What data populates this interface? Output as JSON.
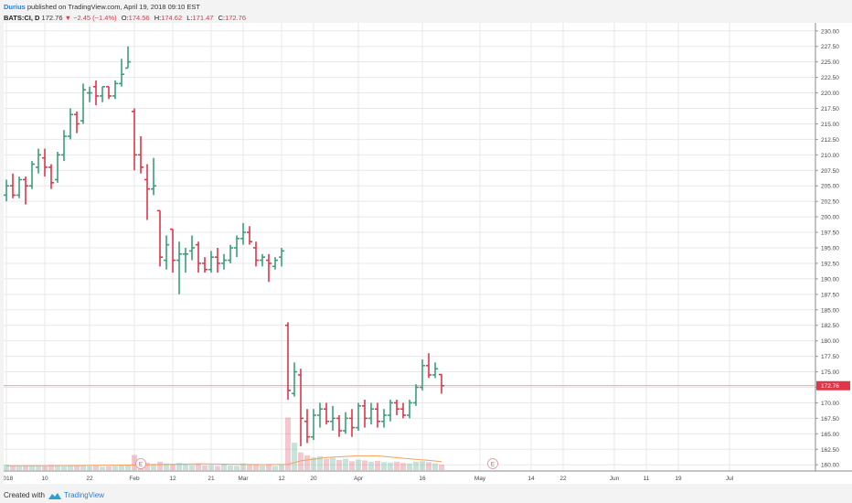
{
  "header": {
    "author": "Durius",
    "published": " published on TradingView.com, April 19, 2018 09:10 EST",
    "ticker": "BATS:CI, D",
    "last": "172.76",
    "change": "▼ −2.45 (−1.4%)",
    "open_label": "O:",
    "open": "174.56",
    "high_label": "H:",
    "high": "174.62",
    "low_label": "L:",
    "low": "171.47",
    "close_label": "C:",
    "close": "172.76"
  },
  "footer": {
    "created_with": "Created with",
    "brand": "TradingView"
  },
  "colors": {
    "up": "#3a9e7a",
    "down": "#e0364a",
    "grid": "#e8e8e8",
    "ma": "#f2a15a",
    "price_line": "#f08080"
  },
  "chart_data": {
    "type": "bar",
    "title": "",
    "price_axis": {
      "min": 159,
      "max": 231,
      "ticks": [
        "160.00",
        "162.50",
        "165.00",
        "167.50",
        "170.00",
        "172.50",
        "175.00",
        "177.50",
        "180.00",
        "182.50",
        "185.00",
        "187.50",
        "190.00",
        "192.50",
        "195.00",
        "197.50",
        "200.00",
        "202.50",
        "205.00",
        "207.50",
        "210.00",
        "212.50",
        "215.00",
        "217.50",
        "220.00",
        "222.50",
        "225.00",
        "227.50",
        "230.00"
      ]
    },
    "last_price": {
      "value": 172.76,
      "label": "172.76"
    },
    "x_labels": [
      {
        "label": "2018",
        "bar": 0
      },
      {
        "label": "10",
        "bar": 6
      },
      {
        "label": "22",
        "bar": 13
      },
      {
        "label": "Feb",
        "bar": 20
      },
      {
        "label": "12",
        "bar": 26
      },
      {
        "label": "21",
        "bar": 32
      },
      {
        "label": "Mar",
        "bar": 37
      },
      {
        "label": "12",
        "bar": 43
      },
      {
        "label": "20",
        "bar": 48
      },
      {
        "label": "Apr",
        "bar": 55
      },
      {
        "label": "16",
        "bar": 65
      },
      {
        "label": "May",
        "bar": 74
      },
      {
        "label": "14",
        "bar": 82
      },
      {
        "label": "22",
        "bar": 87
      },
      {
        "label": "Jun",
        "bar": 95
      },
      {
        "label": "11",
        "bar": 100
      },
      {
        "label": "19",
        "bar": 105
      },
      {
        "label": "Jul",
        "bar": 113
      }
    ],
    "earnings_markers": [
      {
        "bar": 21,
        "label": "E"
      },
      {
        "bar": 76,
        "label": "E"
      }
    ],
    "candles": [
      {
        "i": 0,
        "o": 203.5,
        "h": 206.0,
        "l": 202.5,
        "c": 205.0
      },
      {
        "i": 1,
        "o": 205.0,
        "h": 207.0,
        "l": 203.0,
        "c": 203.5
      },
      {
        "i": 2,
        "o": 203.5,
        "h": 206.5,
        "l": 203.0,
        "c": 206.0
      },
      {
        "i": 3,
        "o": 206.0,
        "h": 206.5,
        "l": 202.0,
        "c": 205.0
      },
      {
        "i": 4,
        "o": 205.0,
        "h": 209.0,
        "l": 204.5,
        "c": 208.5
      },
      {
        "i": 5,
        "o": 208.0,
        "h": 211.0,
        "l": 207.0,
        "c": 210.0
      },
      {
        "i": 6,
        "o": 209.5,
        "h": 211.0,
        "l": 206.5,
        "c": 208.0
      },
      {
        "i": 7,
        "o": 208.0,
        "h": 208.5,
        "l": 204.5,
        "c": 205.5
      },
      {
        "i": 8,
        "o": 206.0,
        "h": 210.5,
        "l": 205.5,
        "c": 210.0
      },
      {
        "i": 9,
        "o": 210.0,
        "h": 214.0,
        "l": 209.0,
        "c": 213.0
      },
      {
        "i": 10,
        "o": 213.0,
        "h": 217.5,
        "l": 212.5,
        "c": 216.5
      },
      {
        "i": 11,
        "o": 216.5,
        "h": 217.0,
        "l": 213.5,
        "c": 215.0
      },
      {
        "i": 12,
        "o": 215.5,
        "h": 221.5,
        "l": 215.0,
        "c": 220.5
      },
      {
        "i": 13,
        "o": 220.0,
        "h": 221.0,
        "l": 218.5,
        "c": 220.0
      },
      {
        "i": 14,
        "o": 221.0,
        "h": 222.0,
        "l": 218.0,
        "c": 219.5
      },
      {
        "i": 15,
        "o": 219.5,
        "h": 221.0,
        "l": 218.5,
        "c": 221.0
      },
      {
        "i": 16,
        "o": 221.0,
        "h": 221.0,
        "l": 219.0,
        "c": 219.5
      },
      {
        "i": 17,
        "o": 219.5,
        "h": 222.0,
        "l": 219.0,
        "c": 221.5
      },
      {
        "i": 18,
        "o": 221.5,
        "h": 225.5,
        "l": 221.0,
        "c": 223.0
      },
      {
        "i": 19,
        "o": 224.0,
        "h": 227.5,
        "l": 224.0,
        "c": 225.0
      },
      {
        "i": 20,
        "o": 217.0,
        "h": 217.5,
        "l": 207.5,
        "c": 210.0
      },
      {
        "i": 21,
        "o": 210.0,
        "h": 213.0,
        "l": 207.0,
        "c": 208.0
      },
      {
        "i": 22,
        "o": 206.0,
        "h": 208.5,
        "l": 199.5,
        "c": 204.5
      },
      {
        "i": 23,
        "o": 204.5,
        "h": 209.5,
        "l": 203.5,
        "c": 205.0
      },
      {
        "i": 24,
        "o": 201.0,
        "h": 201.0,
        "l": 192.0,
        "c": 193.5
      },
      {
        "i": 25,
        "o": 193.0,
        "h": 197.0,
        "l": 191.5,
        "c": 195.5
      },
      {
        "i": 26,
        "o": 198.0,
        "h": 198.0,
        "l": 191.0,
        "c": 193.0
      },
      {
        "i": 27,
        "o": 193.0,
        "h": 196.0,
        "l": 187.5,
        "c": 194.0
      },
      {
        "i": 28,
        "o": 194.0,
        "h": 195.0,
        "l": 191.0,
        "c": 194.0
      },
      {
        "i": 29,
        "o": 194.5,
        "h": 197.0,
        "l": 193.0,
        "c": 195.0
      },
      {
        "i": 30,
        "o": 195.5,
        "h": 196.0,
        "l": 191.0,
        "c": 192.5
      },
      {
        "i": 31,
        "o": 192.5,
        "h": 193.5,
        "l": 191.0,
        "c": 191.5
      },
      {
        "i": 32,
        "o": 191.5,
        "h": 194.5,
        "l": 191.0,
        "c": 193.5
      },
      {
        "i": 33,
        "o": 193.5,
        "h": 195.0,
        "l": 191.0,
        "c": 192.5
      },
      {
        "i": 34,
        "o": 192.5,
        "h": 194.0,
        "l": 191.5,
        "c": 193.0
      },
      {
        "i": 35,
        "o": 193.0,
        "h": 195.5,
        "l": 192.5,
        "c": 195.0
      },
      {
        "i": 36,
        "o": 195.0,
        "h": 197.0,
        "l": 193.5,
        "c": 196.5
      },
      {
        "i": 37,
        "o": 196.5,
        "h": 199.0,
        "l": 195.5,
        "c": 197.5
      },
      {
        "i": 38,
        "o": 197.5,
        "h": 198.5,
        "l": 195.5,
        "c": 196.0
      },
      {
        "i": 39,
        "o": 195.0,
        "h": 196.0,
        "l": 192.0,
        "c": 193.0
      },
      {
        "i": 40,
        "o": 193.0,
        "h": 194.0,
        "l": 192.0,
        "c": 193.5
      },
      {
        "i": 41,
        "o": 193.0,
        "h": 194.0,
        "l": 189.5,
        "c": 192.5
      },
      {
        "i": 42,
        "o": 192.0,
        "h": 193.5,
        "l": 191.5,
        "c": 193.0
      },
      {
        "i": 43,
        "o": 193.5,
        "h": 195.0,
        "l": 192.0,
        "c": 194.5
      },
      {
        "i": 44,
        "o": 182.5,
        "h": 183.0,
        "l": 170.5,
        "c": 172.0
      },
      {
        "i": 45,
        "o": 171.5,
        "h": 176.5,
        "l": 171.0,
        "c": 175.0
      },
      {
        "i": 46,
        "o": 174.5,
        "h": 175.5,
        "l": 163.0,
        "c": 167.5
      },
      {
        "i": 47,
        "o": 167.0,
        "h": 169.0,
        "l": 163.5,
        "c": 164.5
      },
      {
        "i": 48,
        "o": 164.5,
        "h": 169.0,
        "l": 164.0,
        "c": 168.0
      },
      {
        "i": 49,
        "o": 168.0,
        "h": 170.0,
        "l": 166.0,
        "c": 169.0
      },
      {
        "i": 50,
        "o": 169.0,
        "h": 170.0,
        "l": 166.5,
        "c": 167.0
      },
      {
        "i": 51,
        "o": 167.0,
        "h": 169.5,
        "l": 165.5,
        "c": 167.5
      },
      {
        "i": 52,
        "o": 167.5,
        "h": 168.0,
        "l": 164.5,
        "c": 165.5
      },
      {
        "i": 53,
        "o": 165.5,
        "h": 168.5,
        "l": 165.0,
        "c": 167.5
      },
      {
        "i": 54,
        "o": 167.5,
        "h": 169.0,
        "l": 164.5,
        "c": 166.0
      },
      {
        "i": 55,
        "o": 166.0,
        "h": 170.0,
        "l": 165.5,
        "c": 169.5
      },
      {
        "i": 56,
        "o": 169.5,
        "h": 170.5,
        "l": 166.0,
        "c": 167.5
      },
      {
        "i": 57,
        "o": 167.5,
        "h": 170.0,
        "l": 166.5,
        "c": 169.0
      },
      {
        "i": 58,
        "o": 169.0,
        "h": 170.0,
        "l": 166.0,
        "c": 167.0
      },
      {
        "i": 59,
        "o": 167.0,
        "h": 169.0,
        "l": 166.0,
        "c": 168.0
      },
      {
        "i": 60,
        "o": 168.0,
        "h": 170.5,
        "l": 167.0,
        "c": 170.0
      },
      {
        "i": 61,
        "o": 170.0,
        "h": 170.5,
        "l": 168.0,
        "c": 169.0
      },
      {
        "i": 62,
        "o": 169.0,
        "h": 170.0,
        "l": 167.5,
        "c": 168.0
      },
      {
        "i": 63,
        "o": 168.0,
        "h": 170.5,
        "l": 167.5,
        "c": 170.0
      },
      {
        "i": 64,
        "o": 170.0,
        "h": 173.0,
        "l": 169.5,
        "c": 172.5
      },
      {
        "i": 65,
        "o": 172.5,
        "h": 177.0,
        "l": 172.0,
        "c": 176.0
      },
      {
        "i": 66,
        "o": 176.0,
        "h": 178.0,
        "l": 174.0,
        "c": 174.5
      },
      {
        "i": 67,
        "o": 174.5,
        "h": 176.5,
        "l": 174.0,
        "c": 175.5
      },
      {
        "i": 68,
        "o": 174.56,
        "h": 174.62,
        "l": 171.47,
        "c": 172.76
      }
    ],
    "volume": [
      {
        "i": 0,
        "v": 1.3
      },
      {
        "i": 1,
        "v": 1.0
      },
      {
        "i": 2,
        "v": 0.9
      },
      {
        "i": 3,
        "v": 1.0
      },
      {
        "i": 4,
        "v": 1.1
      },
      {
        "i": 5,
        "v": 1.0
      },
      {
        "i": 6,
        "v": 0.9
      },
      {
        "i": 7,
        "v": 1.2
      },
      {
        "i": 8,
        "v": 1.0
      },
      {
        "i": 9,
        "v": 0.9
      },
      {
        "i": 10,
        "v": 1.1
      },
      {
        "i": 11,
        "v": 1.0
      },
      {
        "i": 12,
        "v": 1.2
      },
      {
        "i": 13,
        "v": 0.9
      },
      {
        "i": 14,
        "v": 1.0
      },
      {
        "i": 15,
        "v": 0.8
      },
      {
        "i": 16,
        "v": 0.9
      },
      {
        "i": 17,
        "v": 1.0
      },
      {
        "i": 18,
        "v": 1.1
      },
      {
        "i": 19,
        "v": 1.3
      },
      {
        "i": 20,
        "v": 3.6
      },
      {
        "i": 21,
        "v": 2.2
      },
      {
        "i": 22,
        "v": 1.8
      },
      {
        "i": 23,
        "v": 1.5
      },
      {
        "i": 24,
        "v": 2.0
      },
      {
        "i": 25,
        "v": 1.6
      },
      {
        "i": 26,
        "v": 1.4
      },
      {
        "i": 27,
        "v": 1.7
      },
      {
        "i": 28,
        "v": 1.3
      },
      {
        "i": 29,
        "v": 1.2
      },
      {
        "i": 30,
        "v": 1.4
      },
      {
        "i": 31,
        "v": 1.1
      },
      {
        "i": 32,
        "v": 1.2
      },
      {
        "i": 33,
        "v": 1.0
      },
      {
        "i": 34,
        "v": 1.3
      },
      {
        "i": 35,
        "v": 1.1
      },
      {
        "i": 36,
        "v": 1.0
      },
      {
        "i": 37,
        "v": 1.6
      },
      {
        "i": 38,
        "v": 1.2
      },
      {
        "i": 39,
        "v": 1.4
      },
      {
        "i": 40,
        "v": 1.1
      },
      {
        "i": 41,
        "v": 1.3
      },
      {
        "i": 42,
        "v": 1.0
      },
      {
        "i": 43,
        "v": 1.2
      },
      {
        "i": 44,
        "v": 12.5
      },
      {
        "i": 45,
        "v": 6.5
      },
      {
        "i": 46,
        "v": 4.2
      },
      {
        "i": 47,
        "v": 3.5
      },
      {
        "i": 48,
        "v": 3.0
      },
      {
        "i": 49,
        "v": 3.3
      },
      {
        "i": 50,
        "v": 2.6
      },
      {
        "i": 51,
        "v": 2.9
      },
      {
        "i": 52,
        "v": 2.4
      },
      {
        "i": 53,
        "v": 2.7
      },
      {
        "i": 54,
        "v": 2.1
      },
      {
        "i": 55,
        "v": 2.5
      },
      {
        "i": 56,
        "v": 2.3
      },
      {
        "i": 57,
        "v": 2.0
      },
      {
        "i": 58,
        "v": 2.2
      },
      {
        "i": 59,
        "v": 1.9
      },
      {
        "i": 60,
        "v": 1.8
      },
      {
        "i": 61,
        "v": 2.0
      },
      {
        "i": 62,
        "v": 1.7
      },
      {
        "i": 63,
        "v": 1.6
      },
      {
        "i": 64,
        "v": 2.0
      },
      {
        "i": 65,
        "v": 2.1
      },
      {
        "i": 66,
        "v": 1.9
      },
      {
        "i": 67,
        "v": 1.6
      },
      {
        "i": 68,
        "v": 1.3
      }
    ],
    "volume_ma": [
      {
        "i": 0,
        "v": 1.0
      },
      {
        "i": 10,
        "v": 1.05
      },
      {
        "i": 20,
        "v": 1.2
      },
      {
        "i": 30,
        "v": 1.5
      },
      {
        "i": 40,
        "v": 1.3
      },
      {
        "i": 44,
        "v": 1.35
      },
      {
        "i": 46,
        "v": 2.2
      },
      {
        "i": 50,
        "v": 3.0
      },
      {
        "i": 55,
        "v": 3.4
      },
      {
        "i": 58,
        "v": 3.4
      },
      {
        "i": 62,
        "v": 2.8
      },
      {
        "i": 66,
        "v": 2.3
      },
      {
        "i": 68,
        "v": 2.0
      }
    ]
  }
}
